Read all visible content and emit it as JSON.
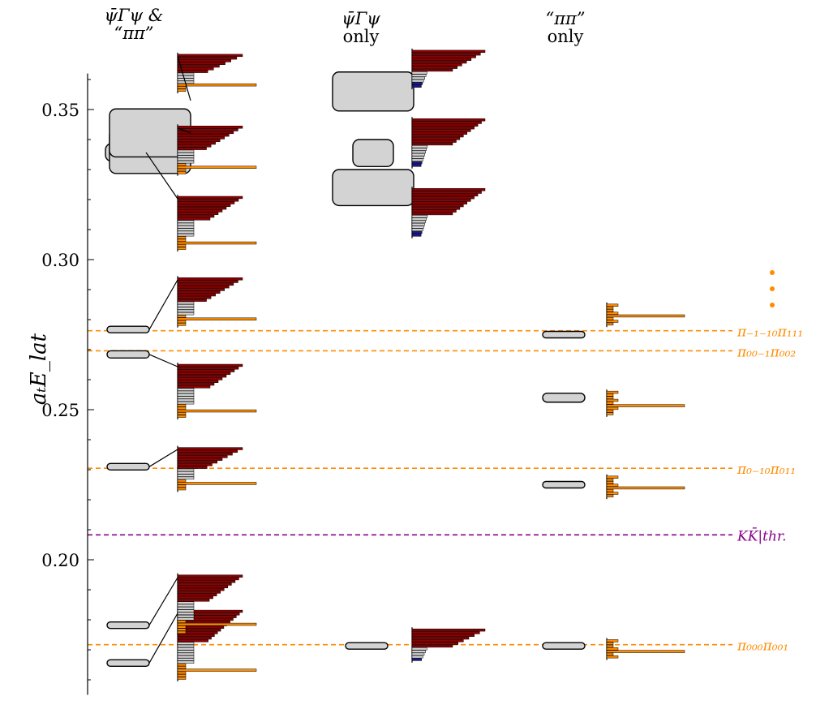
{
  "headers": {
    "col1_line1": "ψ̄Γψ &",
    "col1_line2": "“ππ”",
    "col2_line1": "ψ̄Γψ",
    "col2_line2": "only",
    "col3_line1": "“ππ”",
    "col3_line2": "only"
  },
  "y_axis_label": "aₜE_lat",
  "colors": {
    "red": "#8b0000",
    "blue": "#1a1a8c",
    "grey": "#d3d3d3",
    "orange": "#ff8c00",
    "purple": "#8b008b"
  },
  "chart_data": {
    "type": "spectrum",
    "ylim": [
      0.155,
      0.362
    ],
    "yticks": [
      "0.20",
      "0.25",
      "0.30",
      "0.35"
    ],
    "ytick_values": [
      0.2,
      0.25,
      0.3,
      0.35
    ],
    "thresholds": [
      {
        "label": "π₋₁₋₁₀π₁₁₁",
        "value": 0.2763,
        "color": "orange"
      },
      {
        "label": "π₀₀₋₁π₀₀₂",
        "value": 0.2696,
        "color": "orange"
      },
      {
        "label": "π₀₋₁₀π₀₁₁",
        "value": 0.2305,
        "color": "orange"
      },
      {
        "label": "KK̄|thr.",
        "value": 0.2083,
        "color": "purple"
      },
      {
        "label": "π₀₀₀π₀₀₁",
        "value": 0.1717,
        "color": "orange"
      }
    ],
    "levels_both": [
      {
        "energy": 0.1656,
        "err": 0.0008,
        "wide": false
      },
      {
        "energy": 0.1782,
        "err": 0.0008,
        "wide": false
      },
      {
        "energy": 0.231,
        "err": 0.0008,
        "wide": false
      },
      {
        "energy": 0.2684,
        "err": 0.0012,
        "wide": false
      },
      {
        "energy": 0.2767,
        "err": 0.0008,
        "wide": false
      },
      {
        "energy": 0.3357,
        "err": 0.003,
        "wide": true
      },
      {
        "energy": 0.3362,
        "err": 0.0075,
        "wide": true
      },
      {
        "energy": 0.3422,
        "err": 0.008,
        "wide": true
      }
    ],
    "levels_qq": [
      {
        "energy": 0.1713,
        "err": 0.0008,
        "wide": false
      },
      {
        "energy": 0.324,
        "err": 0.006,
        "wide": true
      },
      {
        "energy": 0.3355,
        "err": 0.0045,
        "wide": true
      },
      {
        "energy": 0.356,
        "err": 0.0065,
        "wide": true
      }
    ],
    "levels_pipi": [
      {
        "energy": 0.1713,
        "err": 0.0008,
        "wide": false
      },
      {
        "energy": 0.225,
        "err": 0.001,
        "wide": false
      },
      {
        "energy": 0.254,
        "err": 0.0015,
        "wide": false
      },
      {
        "energy": 0.275,
        "err": 0.0008,
        "wide": false
      }
    ]
  }
}
